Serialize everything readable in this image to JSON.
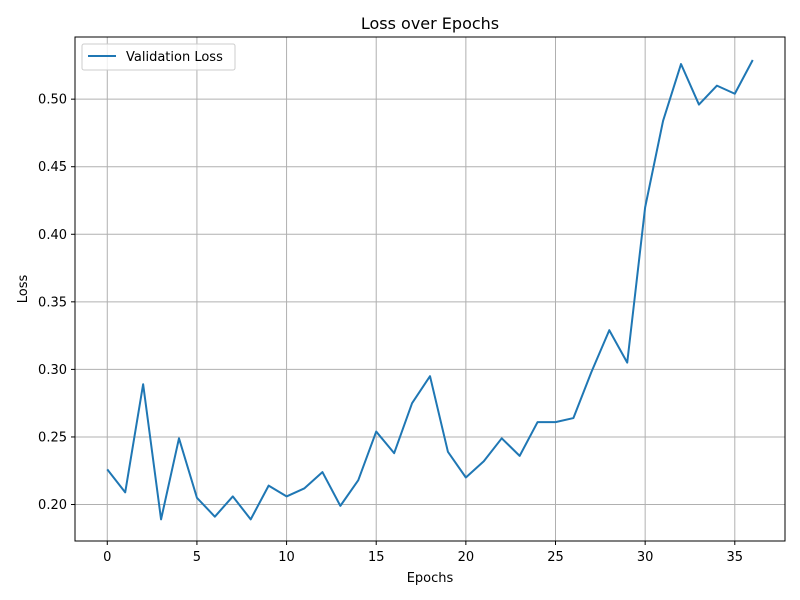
{
  "chart_data": {
    "type": "line",
    "title": "Loss over Epochs",
    "xlabel": "Epochs",
    "ylabel": "Loss",
    "xlim": [
      -1.8,
      37.8
    ],
    "ylim": [
      0.173,
      0.546
    ],
    "grid": true,
    "legend_position": "top-left",
    "x_ticks": [
      0,
      5,
      10,
      15,
      20,
      25,
      30,
      35
    ],
    "x_tick_labels": [
      "0",
      "5",
      "10",
      "15",
      "20",
      "25",
      "30",
      "35"
    ],
    "y_ticks": [
      0.2,
      0.25,
      0.3,
      0.35,
      0.4,
      0.45,
      0.5
    ],
    "y_tick_labels": [
      "0.20",
      "0.25",
      "0.30",
      "0.35",
      "0.40",
      "0.45",
      "0.50"
    ],
    "series": [
      {
        "name": "Validation Loss",
        "color": "#1f77b4",
        "x": [
          0,
          1,
          2,
          3,
          4,
          5,
          6,
          7,
          8,
          9,
          10,
          11,
          12,
          13,
          14,
          15,
          16,
          17,
          18,
          19,
          20,
          21,
          22,
          23,
          24,
          25,
          26,
          27,
          28,
          29,
          30,
          31,
          32,
          33,
          34,
          35,
          36
        ],
        "values": [
          0.226,
          0.209,
          0.289,
          0.189,
          0.249,
          0.205,
          0.191,
          0.206,
          0.189,
          0.214,
          0.206,
          0.212,
          0.224,
          0.199,
          0.218,
          0.254,
          0.238,
          0.275,
          0.295,
          0.239,
          0.22,
          0.232,
          0.249,
          0.236,
          0.261,
          0.261,
          0.264,
          0.298,
          0.329,
          0.305,
          0.42,
          0.484,
          0.526,
          0.496,
          0.51,
          0.504,
          0.529
        ]
      }
    ]
  }
}
